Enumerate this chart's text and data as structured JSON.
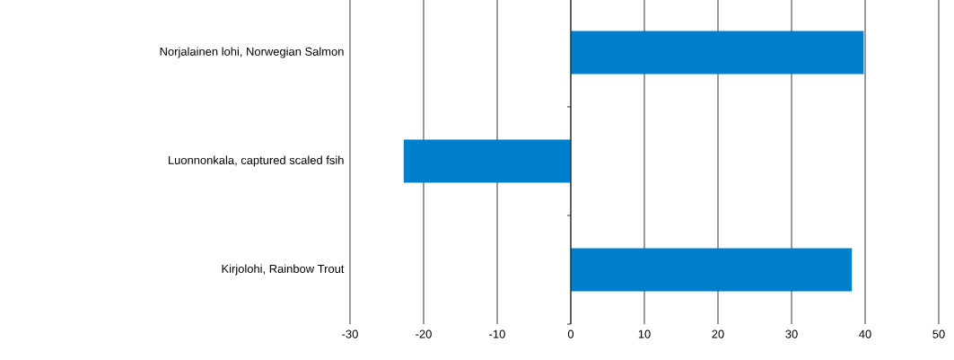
{
  "chart_data": {
    "type": "bar",
    "orientation": "horizontal",
    "categories": [
      "Norjalainen lohi, Norwegian Salmon",
      "Luonnonkala, captured scaled fsih",
      "Kirjolohi, Rainbow Trout"
    ],
    "values": [
      39.8,
      -22.7,
      38.2
    ],
    "color": "#0080cc",
    "xlim": [
      -30,
      50
    ],
    "xticks": [
      -30,
      -20,
      -10,
      0,
      10,
      20,
      30,
      40,
      50
    ],
    "grid": "x"
  }
}
